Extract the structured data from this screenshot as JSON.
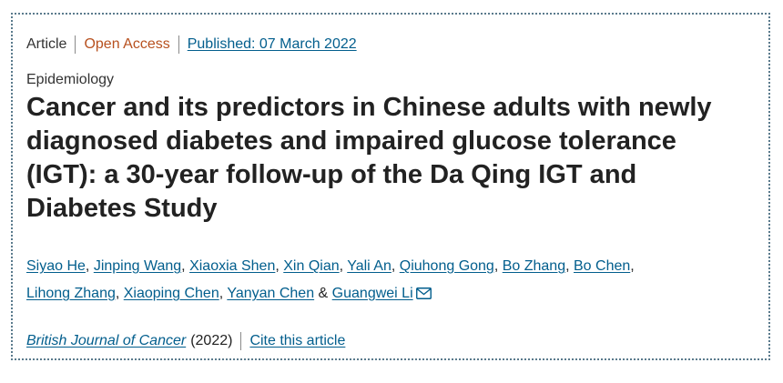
{
  "article_meta": {
    "type": "Article",
    "access": "Open Access",
    "published": "Published: 07 March 2022"
  },
  "subject": "Epidemiology",
  "title": "Cancer and its predictors in Chinese adults with newly diagnosed diabetes and impaired glucose tolerance (IGT): a 30-year follow-up of the Da Qing IGT and Diabetes Study",
  "authors": [
    "Siyao He",
    "Jinping Wang",
    "Xiaoxia Shen",
    "Xin Qian",
    "Yali An",
    "Qiuhong Gong",
    "Bo Zhang",
    "Bo Chen",
    "Lihong Zhang",
    "Xiaoping Chen",
    "Yanyan Chen",
    "Guangwei Li"
  ],
  "author_separator": ", ",
  "author_last_separator": " & ",
  "corresponding_icon": "mail-icon",
  "citation": {
    "journal": "British Journal of Cancer",
    "year": "(2022)",
    "cite_label": "Cite this article"
  },
  "colors": {
    "link": "#025e8d",
    "open_access": "#b7501e",
    "text": "#222222",
    "frame": "#5a7a8c"
  }
}
